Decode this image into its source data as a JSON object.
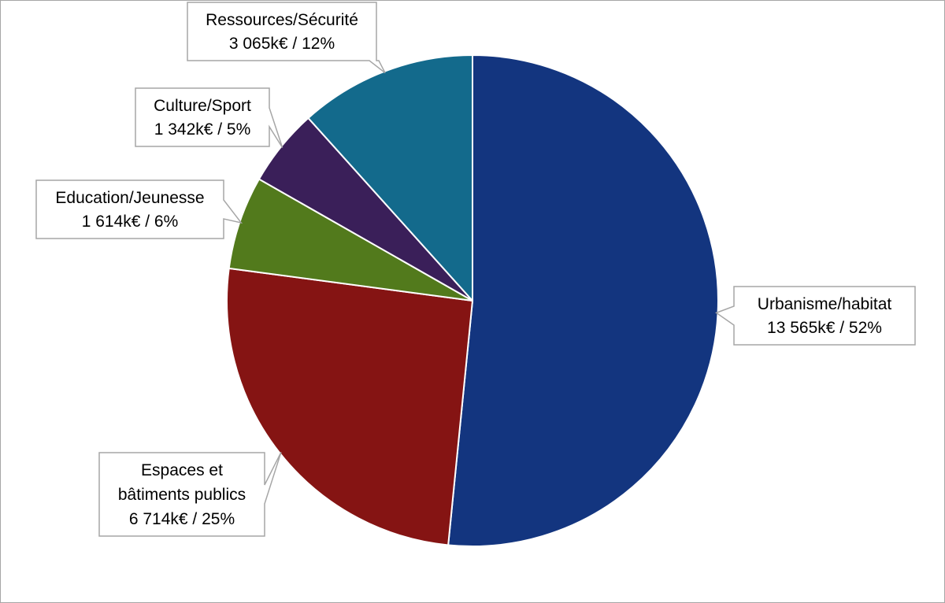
{
  "chart_data": {
    "type": "pie",
    "unit": "k€",
    "start_angle_deg": 0,
    "direction": "clockwise",
    "slices": [
      {
        "name": "Urbanisme/habitat",
        "value": 13565,
        "percent": 52,
        "color": "#13357f",
        "label_lines": [
          "Urbanisme/habitat",
          "13 565k€ / 52%"
        ]
      },
      {
        "name": "Espaces et bâtiments publics",
        "value": 6714,
        "percent": 25,
        "color": "#851413",
        "label_lines": [
          "Espaces et",
          "bâtiments publics",
          "6 714k€ / 25%"
        ]
      },
      {
        "name": "Education/Jeunesse",
        "value": 1614,
        "percent": 6,
        "color": "#527a1c",
        "label_lines": [
          "Education/Jeunesse",
          "1 614k€ / 6%"
        ]
      },
      {
        "name": "Culture/Sport",
        "value": 1342,
        "percent": 5,
        "color": "#3a1f59",
        "label_lines": [
          "Culture/Sport",
          "1 342k€ / 5%"
        ]
      },
      {
        "name": "Ressources/Sécurité",
        "value": 3065,
        "percent": 12,
        "color": "#136a8c",
        "label_lines": [
          "Ressources/Sécurité",
          "3 065k€ / 12%"
        ]
      }
    ]
  }
}
